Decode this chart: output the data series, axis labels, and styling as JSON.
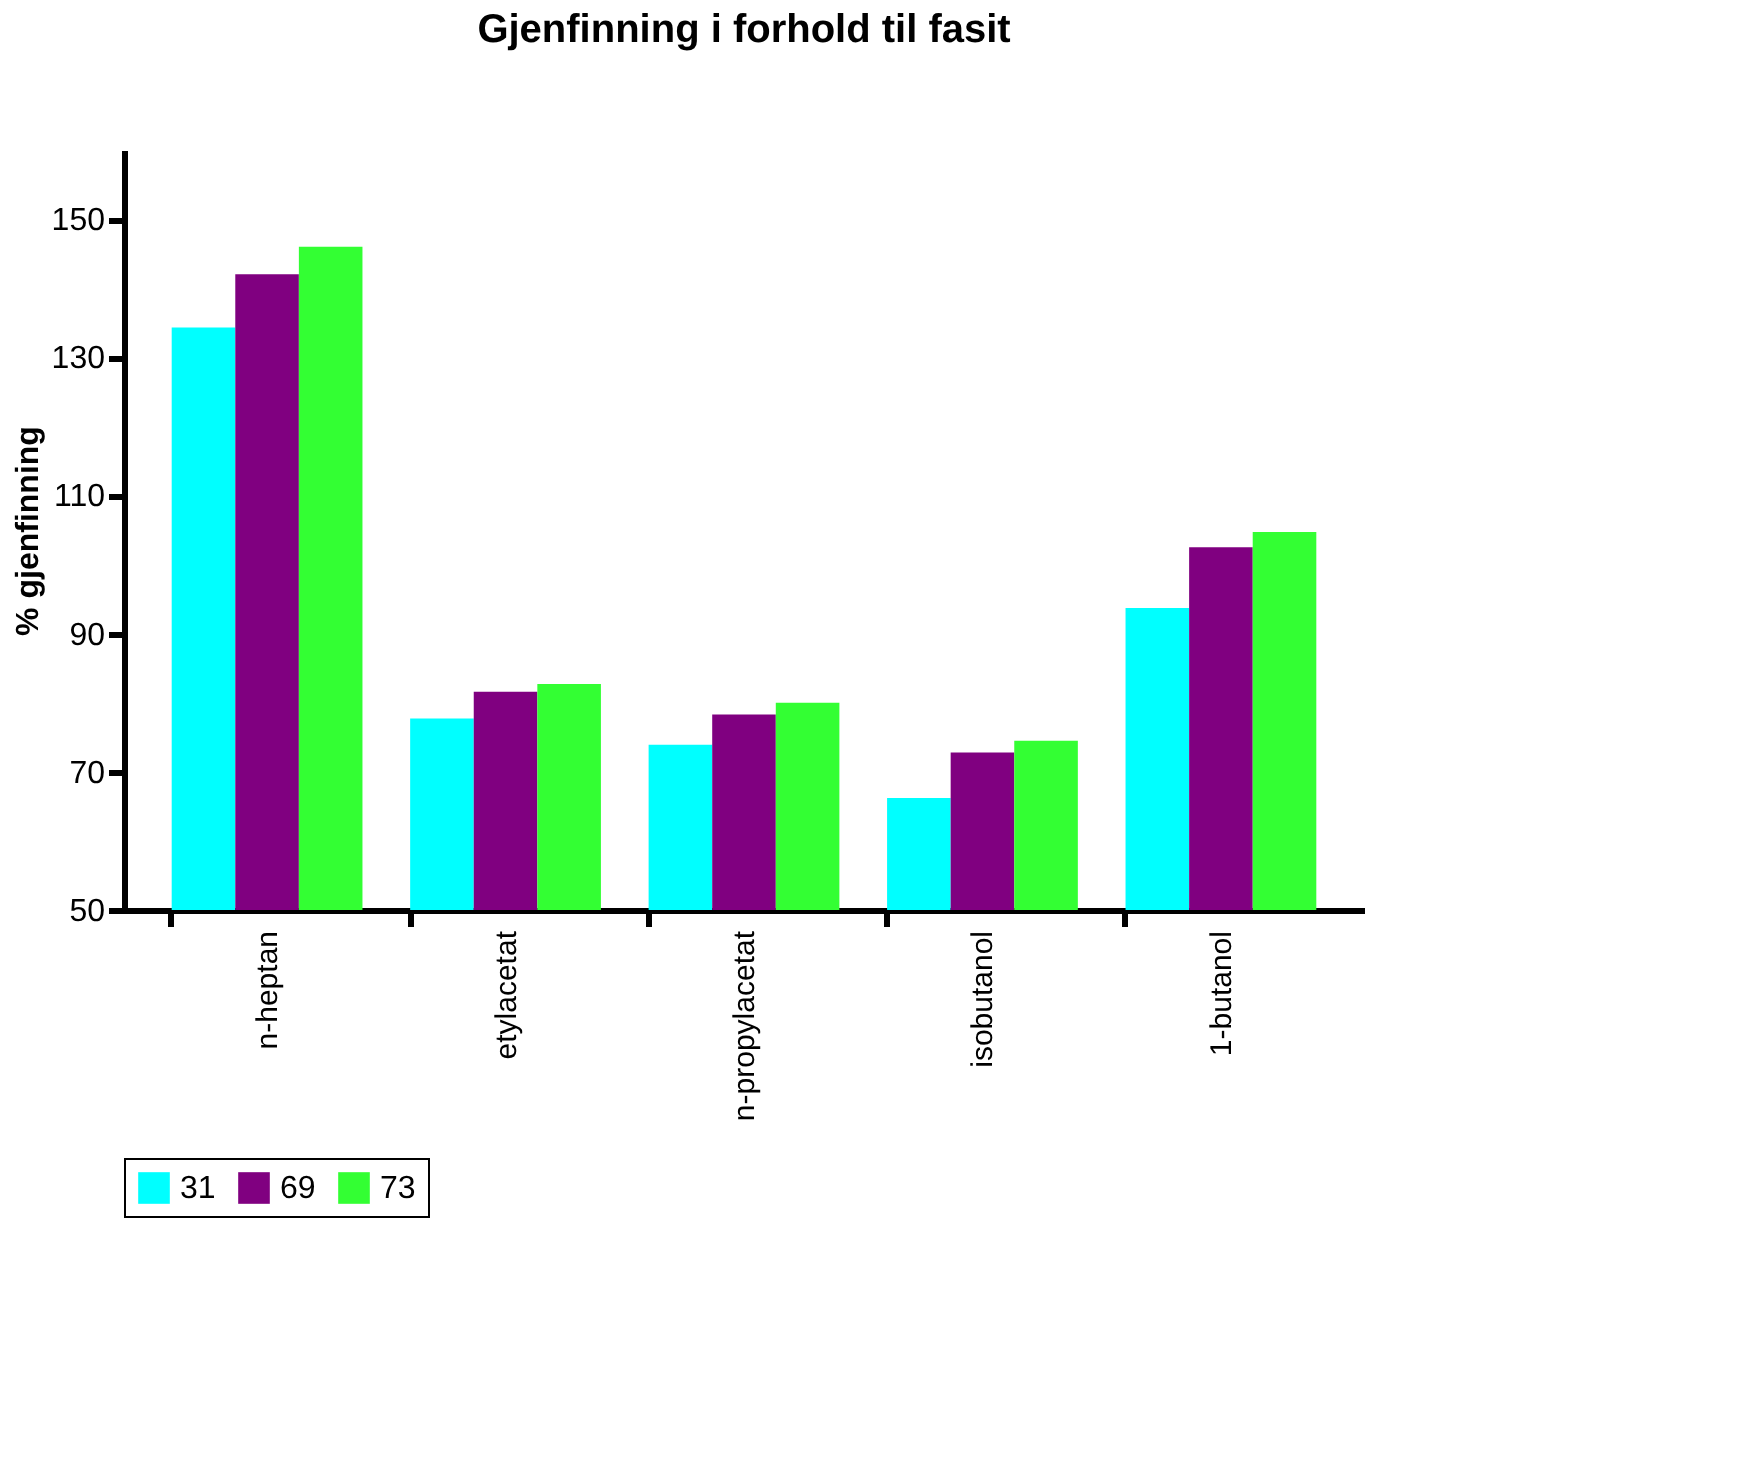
{
  "chart_data": {
    "type": "bar",
    "title": "Gjenfinning i forhold til fasit",
    "ylabel": "% gjenfinning",
    "categories": [
      "n-heptan",
      "etylacetat",
      "n-propylacetat",
      "isobutanol",
      "1-butanol"
    ],
    "series": [
      {
        "name": "31",
        "color": "#00ffff",
        "values": [
          134.3,
          77.7,
          73.9,
          66.2,
          93.7
        ]
      },
      {
        "name": "69",
        "color": "#800080",
        "values": [
          142,
          81.6,
          78.3,
          72.8,
          102.5
        ]
      },
      {
        "name": "73",
        "color": "#33ff33",
        "values": [
          146,
          82.7,
          80,
          74.5,
          104.7
        ]
      }
    ],
    "ylim": [
      50,
      160
    ],
    "yticks": [
      50,
      70,
      90,
      110,
      130,
      150
    ],
    "grid": false,
    "legend": "bottom"
  }
}
